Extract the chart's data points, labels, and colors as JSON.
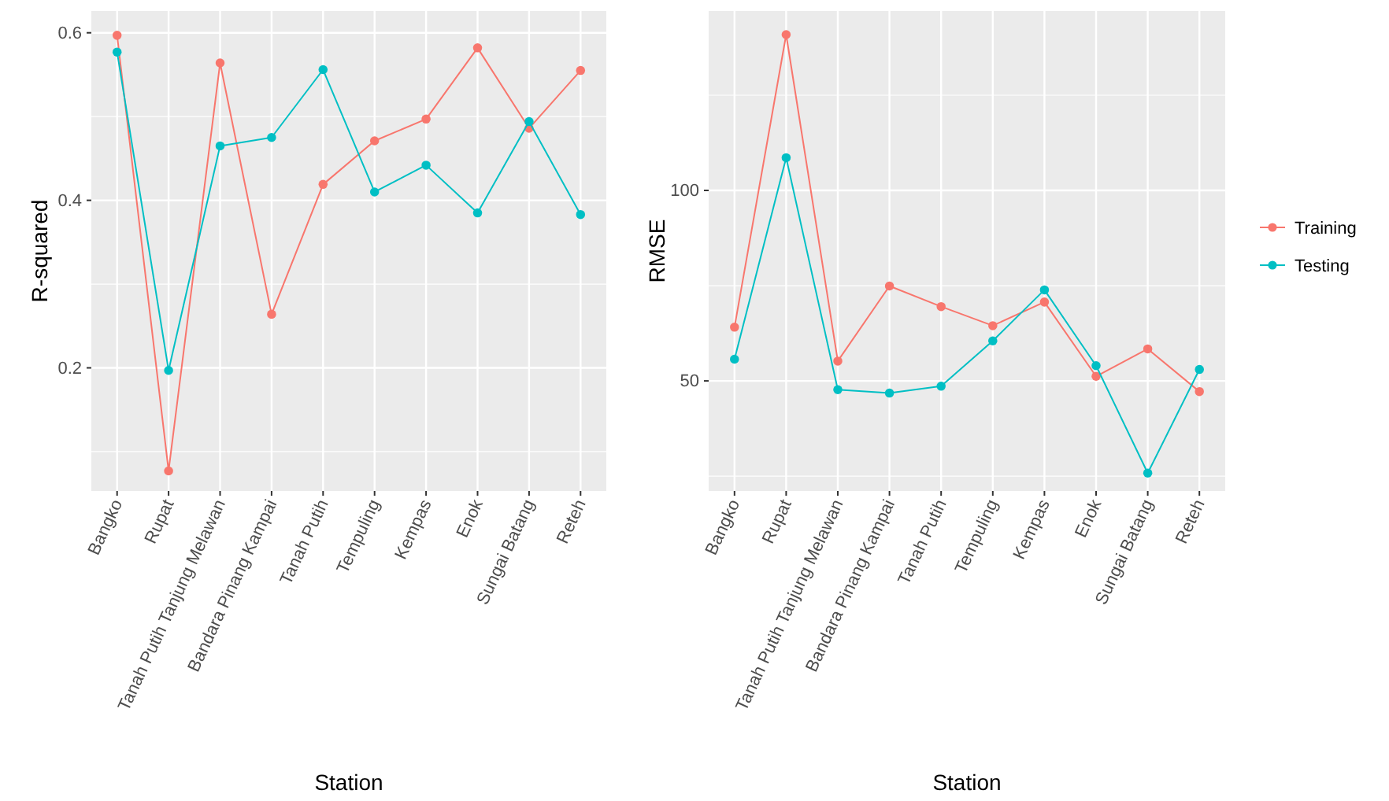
{
  "chart_data": [
    {
      "type": "line",
      "xlabel": "Station",
      "ylabel": "R-squared",
      "categories": [
        "Bangko",
        "Rupat",
        "Tanah Putih Tanjung Melawan",
        "Bandara Pinang Kampai",
        "Tanah Putih",
        "Tempuling",
        "Kempas",
        "Enok",
        "Sungai Batang",
        "Reteh"
      ],
      "series": [
        {
          "color": "#f8766d",
          "values": [
            0.597,
            0.077,
            0.564,
            0.264,
            0.419,
            0.471,
            0.497,
            0.582,
            0.486,
            0.555
          ]
        },
        {
          "color": "#00bfc4",
          "values": [
            0.577,
            0.197,
            0.465,
            0.475,
            0.556,
            0.41,
            0.442,
            0.385,
            0.494,
            0.383
          ]
        }
      ],
      "ylim": [
        0.053,
        0.626
      ],
      "yticks": [
        {
          "value": 0.1,
          "label": null
        },
        0.2,
        {
          "value": 0.3,
          "label": null
        },
        0.4,
        {
          "value": 0.5,
          "label": null
        },
        0.6
      ],
      "grid": true,
      "marker": "circle"
    },
    {
      "type": "line",
      "xlabel": "Station",
      "ylabel": "RMSE",
      "categories": [
        "Bangko",
        "Rupat",
        "Tanah Putih Tanjung Melawan",
        "Bandara Pinang Kampai",
        "Tanah Putih",
        "Tempuling",
        "Kempas",
        "Enok",
        "Sungai Batang",
        "Reteh"
      ],
      "series": [
        {
          "name": "Training",
          "color": "#f8766d",
          "values": [
            64.1,
            140.9,
            55.2,
            74.9,
            69.5,
            64.5,
            70.7,
            51.2,
            58.4,
            47.2
          ]
        },
        {
          "name": "Testing",
          "color": "#00bfc4",
          "values": [
            55.7,
            108.6,
            47.7,
            46.8,
            48.6,
            60.5,
            73.9,
            54.0,
            25.8,
            53.0
          ]
        }
      ],
      "ylim": [
        21.1,
        147.1
      ],
      "yticks": [
        {
          "value": 25,
          "label": null
        },
        50,
        {
          "value": 75,
          "label": null
        },
        100,
        {
          "value": 125,
          "label": null
        }
      ],
      "grid": true,
      "marker": "circle",
      "legend": "right"
    }
  ]
}
